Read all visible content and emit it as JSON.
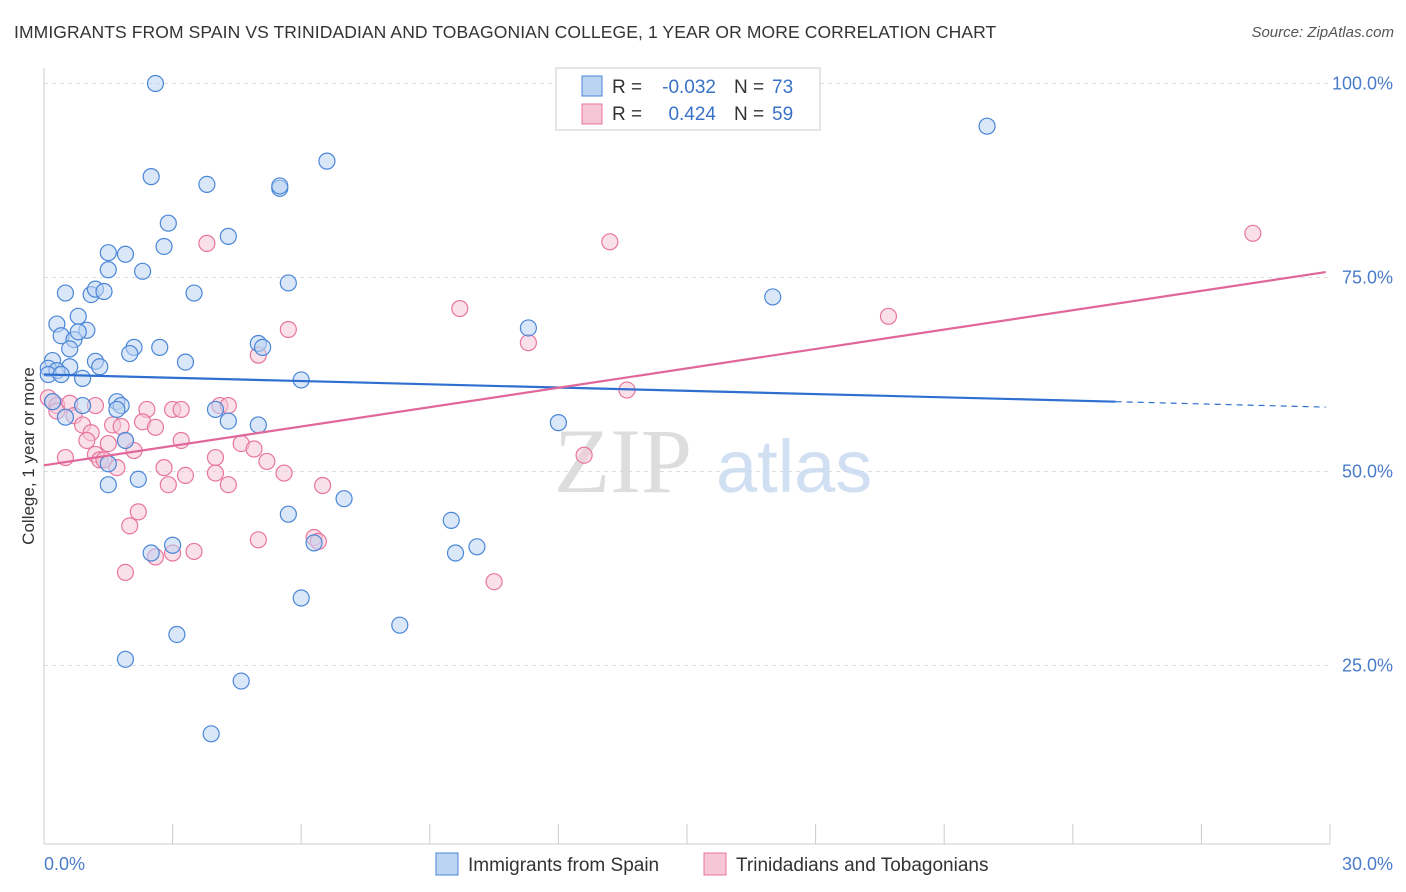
{
  "title": "IMMIGRANTS FROM SPAIN VS TRINIDADIAN AND TOBAGONIAN COLLEGE, 1 YEAR OR MORE CORRELATION CHART",
  "source": "Source: ZipAtlas.com",
  "watermark": {
    "zip": "ZIP",
    "atlas": "atlas"
  },
  "colors": {
    "blue": "#4a86d8",
    "blue_fill": "#bcd4f2",
    "blue_line": "#2f6fcf",
    "pink": "#e8759f",
    "pink_fill": "#f6c6d6",
    "pink_line": "#e0679a",
    "axis_text": "#4a7cc9",
    "grid": "#dddddd"
  },
  "chart_data": {
    "type": "scatter",
    "title": "IMMIGRANTS FROM SPAIN VS TRINIDADIAN AND TOBAGONIAN COLLEGE, 1 YEAR OR MORE CORRELATION CHART",
    "xlabel": "",
    "ylabel": "College, 1 year or more",
    "xlim": [
      0,
      30
    ],
    "ylim": [
      2,
      102
    ],
    "x_tick_labels": {
      "min": "0.0%",
      "max": "30.0%"
    },
    "y_ticks": [
      25,
      50,
      75,
      100
    ],
    "y_tick_labels": [
      "25.0%",
      "50.0%",
      "75.0%",
      "100.0%"
    ],
    "legend_stats": [
      {
        "r_label": "R =",
        "r_value": "-0.032",
        "n_label": "N =",
        "n_value": "73"
      },
      {
        "r_label": "R =",
        "r_value": "0.424",
        "n_label": "N =",
        "n_value": "59"
      }
    ],
    "series": [
      {
        "name": "Immigrants from Spain",
        "trend": {
          "x_start": 0,
          "y_start": 62.5,
          "x_solid_end": 25.0,
          "y_solid_end": 59.0,
          "x_end": 29.9,
          "y_end": 58.3
        },
        "points": [
          [
            2.6,
            100.0
          ],
          [
            22.0,
            94.5
          ],
          [
            6.6,
            90.0
          ],
          [
            2.5,
            88.0
          ],
          [
            3.8,
            87.0
          ],
          [
            5.5,
            86.5
          ],
          [
            5.5,
            86.8
          ],
          [
            2.9,
            82.0
          ],
          [
            4.3,
            80.3
          ],
          [
            1.5,
            78.2
          ],
          [
            1.9,
            78.0
          ],
          [
            2.8,
            79.0
          ],
          [
            1.5,
            76.0
          ],
          [
            2.3,
            75.8
          ],
          [
            5.7,
            74.3
          ],
          [
            0.5,
            73.0
          ],
          [
            1.1,
            72.8
          ],
          [
            1.2,
            73.5
          ],
          [
            1.4,
            73.2
          ],
          [
            3.5,
            73.0
          ],
          [
            17.0,
            72.5
          ],
          [
            0.8,
            70.0
          ],
          [
            0.3,
            69.0
          ],
          [
            0.4,
            67.5
          ],
          [
            0.7,
            67.0
          ],
          [
            1.0,
            68.2
          ],
          [
            11.3,
            68.5
          ],
          [
            0.8,
            68.0
          ],
          [
            5.0,
            66.5
          ],
          [
            5.1,
            66.0
          ],
          [
            2.1,
            66.0
          ],
          [
            2.7,
            66.0
          ],
          [
            0.6,
            65.8
          ],
          [
            2.0,
            65.2
          ],
          [
            0.2,
            64.3
          ],
          [
            1.2,
            64.2
          ],
          [
            3.3,
            64.1
          ],
          [
            1.3,
            63.5
          ],
          [
            0.6,
            63.5
          ],
          [
            0.1,
            63.3
          ],
          [
            0.3,
            63.0
          ],
          [
            0.1,
            62.5
          ],
          [
            0.4,
            62.5
          ],
          [
            0.9,
            62.0
          ],
          [
            6.0,
            61.8
          ],
          [
            1.7,
            59.0
          ],
          [
            1.8,
            58.5
          ],
          [
            0.9,
            58.5
          ],
          [
            0.2,
            59.0
          ],
          [
            4.0,
            58.0
          ],
          [
            1.7,
            58.0
          ],
          [
            0.5,
            57.0
          ],
          [
            4.3,
            56.5
          ],
          [
            5.0,
            56.0
          ],
          [
            12.0,
            56.3
          ],
          [
            1.9,
            54.0
          ],
          [
            1.5,
            51.0
          ],
          [
            2.2,
            49.0
          ],
          [
            1.5,
            48.3
          ],
          [
            7.0,
            46.5
          ],
          [
            5.7,
            44.5
          ],
          [
            9.5,
            43.7
          ],
          [
            3.0,
            40.5
          ],
          [
            6.3,
            40.8
          ],
          [
            10.1,
            40.3
          ],
          [
            2.5,
            39.5
          ],
          [
            9.6,
            39.5
          ],
          [
            6.0,
            33.7
          ],
          [
            8.3,
            30.2
          ],
          [
            3.1,
            29.0
          ],
          [
            1.9,
            25.8
          ],
          [
            4.6,
            23.0
          ],
          [
            3.9,
            16.2
          ]
        ]
      },
      {
        "name": "Trinidadians and Tobagonians",
        "trend": {
          "x_start": 0,
          "y_start": 50.8,
          "x_end": 29.9,
          "y_end": 75.7
        },
        "points": [
          [
            28.2,
            80.7
          ],
          [
            13.2,
            79.6
          ],
          [
            3.8,
            79.4
          ],
          [
            9.7,
            71.0
          ],
          [
            19.7,
            70.0
          ],
          [
            5.7,
            68.3
          ],
          [
            11.3,
            66.6
          ],
          [
            5.0,
            65.0
          ],
          [
            13.6,
            60.5
          ],
          [
            0.1,
            59.5
          ],
          [
            0.2,
            59.0
          ],
          [
            0.3,
            58.5
          ],
          [
            0.6,
            58.8
          ],
          [
            1.2,
            58.5
          ],
          [
            2.4,
            58.0
          ],
          [
            3.0,
            58.0
          ],
          [
            3.2,
            58.0
          ],
          [
            0.3,
            57.8
          ],
          [
            0.7,
            57.2
          ],
          [
            4.1,
            58.5
          ],
          [
            4.3,
            58.5
          ],
          [
            0.9,
            56.0
          ],
          [
            2.3,
            56.4
          ],
          [
            1.6,
            56.0
          ],
          [
            1.8,
            55.8
          ],
          [
            2.6,
            55.7
          ],
          [
            1.1,
            55.0
          ],
          [
            1.0,
            54.0
          ],
          [
            1.5,
            53.6
          ],
          [
            3.2,
            54.0
          ],
          [
            1.9,
            54.0
          ],
          [
            4.6,
            53.6
          ],
          [
            4.9,
            52.9
          ],
          [
            2.1,
            52.7
          ],
          [
            1.2,
            52.2
          ],
          [
            0.5,
            51.8
          ],
          [
            1.3,
            51.5
          ],
          [
            1.4,
            51.5
          ],
          [
            4.0,
            51.8
          ],
          [
            5.2,
            51.3
          ],
          [
            12.6,
            52.1
          ],
          [
            1.7,
            50.5
          ],
          [
            2.8,
            50.5
          ],
          [
            3.3,
            49.5
          ],
          [
            4.0,
            49.8
          ],
          [
            5.6,
            49.8
          ],
          [
            2.9,
            48.3
          ],
          [
            4.3,
            48.3
          ],
          [
            6.5,
            48.2
          ],
          [
            2.2,
            44.8
          ],
          [
            2.0,
            43.0
          ],
          [
            5.0,
            41.2
          ],
          [
            6.3,
            41.5
          ],
          [
            6.4,
            41.0
          ],
          [
            3.5,
            39.7
          ],
          [
            2.6,
            39.0
          ],
          [
            3.0,
            39.5
          ],
          [
            1.9,
            37.0
          ],
          [
            10.5,
            35.8
          ]
        ]
      }
    ]
  },
  "legend_bottom": [
    "Immigrants from Spain",
    "Trinidadians and Tobagonians"
  ]
}
